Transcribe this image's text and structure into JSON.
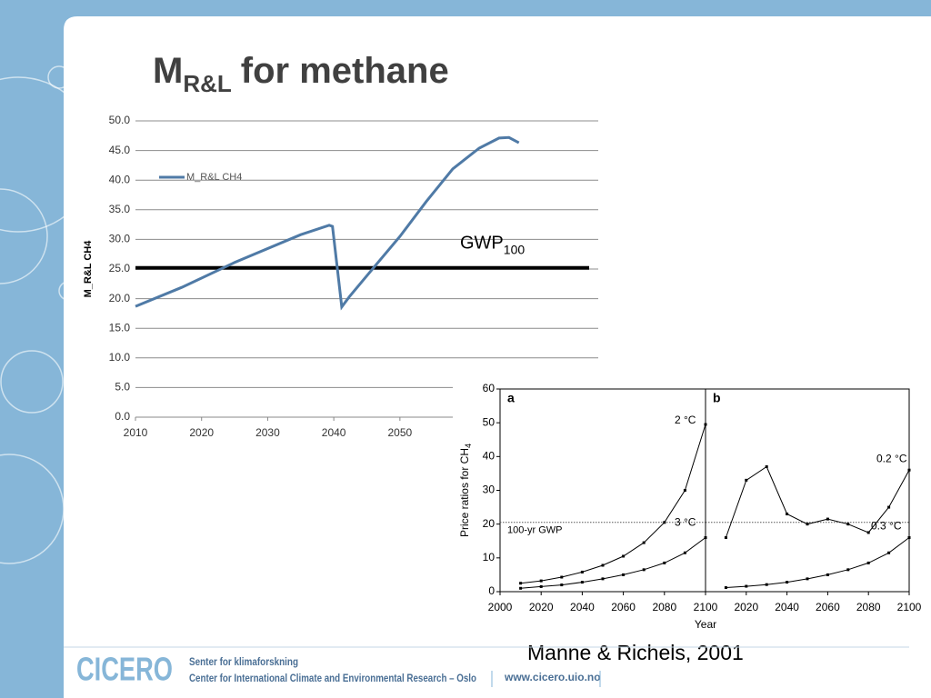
{
  "slide": {
    "title_main": "M",
    "title_sub": "R&L",
    "title_rest": "for methane",
    "caption": "Manne & Richels, 2001",
    "footer_logo": "CICERO",
    "footer_line1": "Senter for klimaforskning",
    "footer_line2": "Center for International Climate and Environmental Research – Oslo",
    "footer_url": "www.cicero.uio.no"
  },
  "chart_data": [
    {
      "type": "line",
      "ylabel": "M_R&L CH4",
      "xlim": [
        2010,
        2080
      ],
      "xticks": [
        2010,
        2020,
        2030,
        2040,
        2050
      ],
      "ylim": [
        0,
        50
      ],
      "yticks": [
        {
          "value": 0,
          "label": "0.0"
        },
        {
          "value": 5,
          "label": "5.0"
        },
        {
          "value": 10,
          "label": "10.0"
        },
        {
          "value": 15,
          "label": "15.0"
        },
        {
          "value": 20,
          "label": "20.0"
        },
        {
          "value": 25,
          "label": "25.0"
        },
        {
          "value": 30,
          "label": "30.0"
        },
        {
          "value": 35,
          "label": "35.0"
        },
        {
          "value": 40,
          "label": "40.0"
        },
        {
          "value": 45,
          "label": "45.0"
        },
        {
          "value": 50,
          "label": "50.0"
        }
      ],
      "grid": true,
      "legend": "upper left",
      "x": [
        2010,
        2017,
        2025,
        2035,
        2039.3,
        2039.8,
        2041.2,
        2042.4,
        2046,
        2050,
        2054,
        2058,
        2062,
        2065,
        2066.5,
        2068
      ],
      "series": [
        {
          "name": "M_R&L CH4",
          "color": "#4f7aa6",
          "values": [
            18.7,
            21.9,
            26.1,
            30.8,
            32.4,
            32.2,
            18.6,
            20.4,
            25.2,
            30.5,
            36.4,
            41.9,
            45.4,
            47.1,
            47.2,
            46.3
          ]
        }
      ],
      "hline": {
        "value": 25.2,
        "label": "GWP",
        "label_sub": "100",
        "color": "#000000"
      }
    },
    {
      "type": "line",
      "panel_label": "a",
      "ylabel": "Price ratios for CH",
      "ylabel_sub": "4",
      "xlabel": "Year",
      "xlim": [
        2000,
        2100
      ],
      "xticks": [
        2000,
        2020,
        2040,
        2060,
        2080,
        2100
      ],
      "ylim": [
        0,
        60
      ],
      "yticks": [
        0,
        10,
        20,
        30,
        40,
        50,
        60
      ],
      "grid": false,
      "x": [
        2010,
        2020,
        2030,
        2040,
        2050,
        2060,
        2070,
        2080,
        2090,
        2100
      ],
      "series": [
        {
          "name": "2 °C",
          "color": "#000000",
          "values": [
            2.5,
            3.2,
            4.3,
            5.8,
            7.8,
            10.5,
            14.5,
            20.5,
            30,
            49.5
          ]
        },
        {
          "name": "3 °C",
          "color": "#000000",
          "values": [
            1,
            1.5,
            2,
            2.8,
            3.8,
            5,
            6.5,
            8.5,
            11.5,
            16
          ]
        }
      ],
      "hline": {
        "value": 20.5,
        "label": "100-yr GWP",
        "color": "#555555"
      }
    },
    {
      "type": "line",
      "panel_label": "b",
      "xlim": [
        2000,
        2100
      ],
      "xticks": [
        2020,
        2040,
        2060,
        2080,
        2100
      ],
      "ylim": [
        0,
        60
      ],
      "grid": false,
      "x": [
        2010,
        2020,
        2030,
        2040,
        2050,
        2060,
        2070,
        2080,
        2090,
        2100
      ],
      "series": [
        {
          "name": "0.2 °C",
          "color": "#000000",
          "values": [
            16,
            33,
            37,
            23,
            20,
            21.5,
            20,
            17.5,
            25,
            36
          ]
        },
        {
          "name": "0.3 °C",
          "color": "#000000",
          "values": [
            1.2,
            1.6,
            2.1,
            2.8,
            3.8,
            5,
            6.5,
            8.5,
            11.5,
            16
          ]
        }
      ],
      "hline": {
        "value": 20.5,
        "color": "#555555"
      }
    }
  ]
}
